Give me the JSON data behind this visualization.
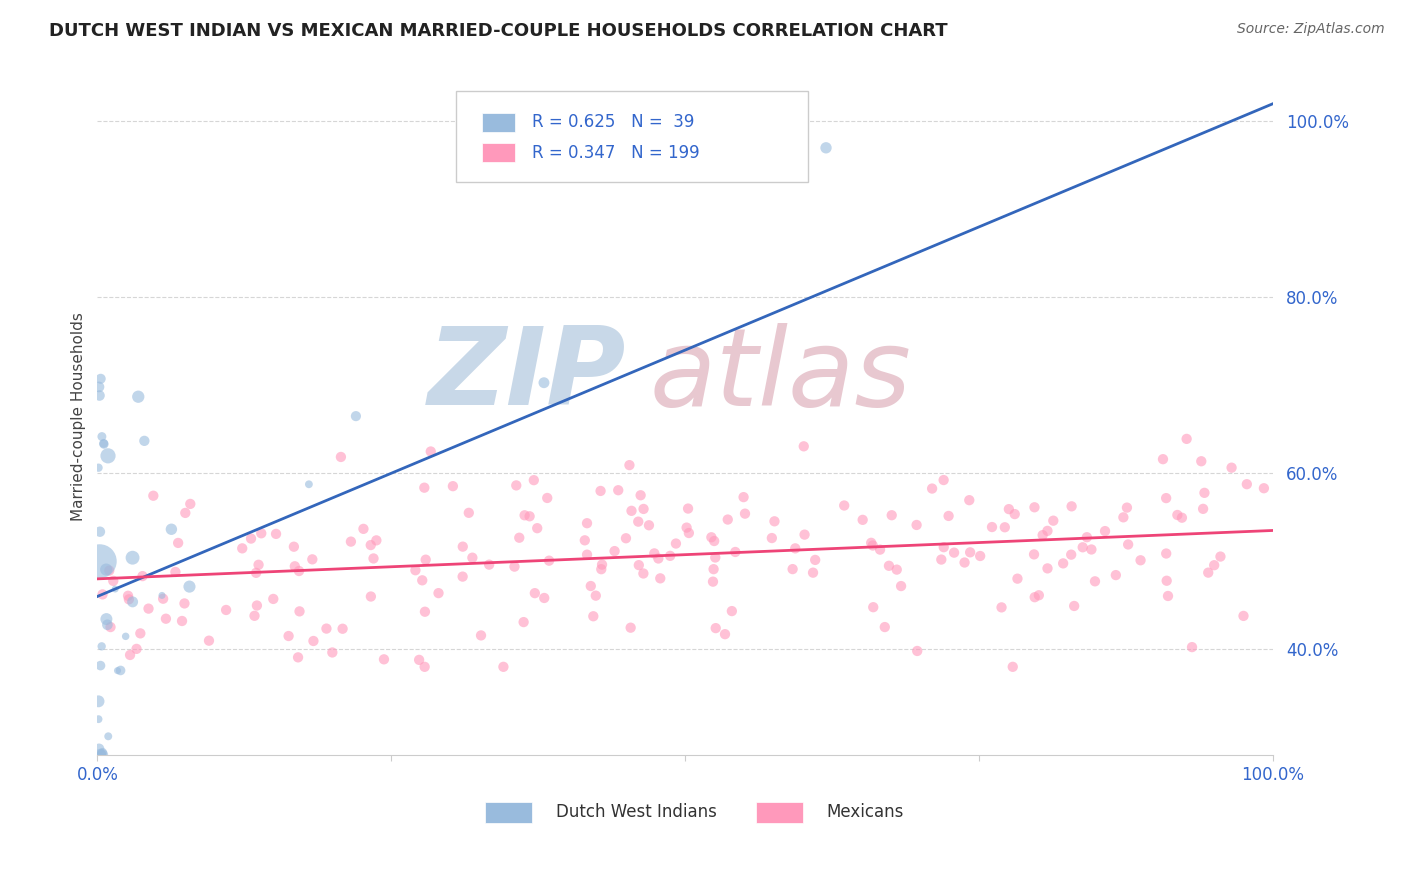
{
  "title": "DUTCH WEST INDIAN VS MEXICAN MARRIED-COUPLE HOUSEHOLDS CORRELATION CHART",
  "source": "Source: ZipAtlas.com",
  "ylabel": "Married-couple Households",
  "blue_R": 0.625,
  "blue_N": 39,
  "pink_R": 0.347,
  "pink_N": 199,
  "blue_color": "#99BBDD",
  "pink_color": "#FF99BB",
  "blue_line_color": "#3366BB",
  "pink_line_color": "#EE4477",
  "legend_label_blue": "Dutch West Indians",
  "legend_label_pink": "Mexicans",
  "xlim": [
    0.0,
    1.0
  ],
  "ylim": [
    0.28,
    1.05
  ],
  "ytick_positions": [
    0.4,
    0.6,
    0.8,
    1.0
  ],
  "ytick_labels": [
    "40.0%",
    "60.0%",
    "80.0%",
    "100.0%"
  ],
  "xtick_positions": [
    0.0,
    0.25,
    0.5,
    0.75,
    1.0
  ],
  "xtick_labels": [
    "0.0%",
    "",
    "",
    "",
    "100.0%"
  ],
  "blue_line_x0": 0.0,
  "blue_line_y0": 0.46,
  "blue_line_x1": 1.0,
  "blue_line_y1": 1.02,
  "pink_line_x0": 0.0,
  "pink_line_y0": 0.48,
  "pink_line_x1": 1.0,
  "pink_line_y1": 0.535,
  "watermark_zip": "ZIP",
  "watermark_atlas": "atlas",
  "watermark_zip_color": "#C8D8E8",
  "watermark_atlas_color": "#E8C8D0"
}
